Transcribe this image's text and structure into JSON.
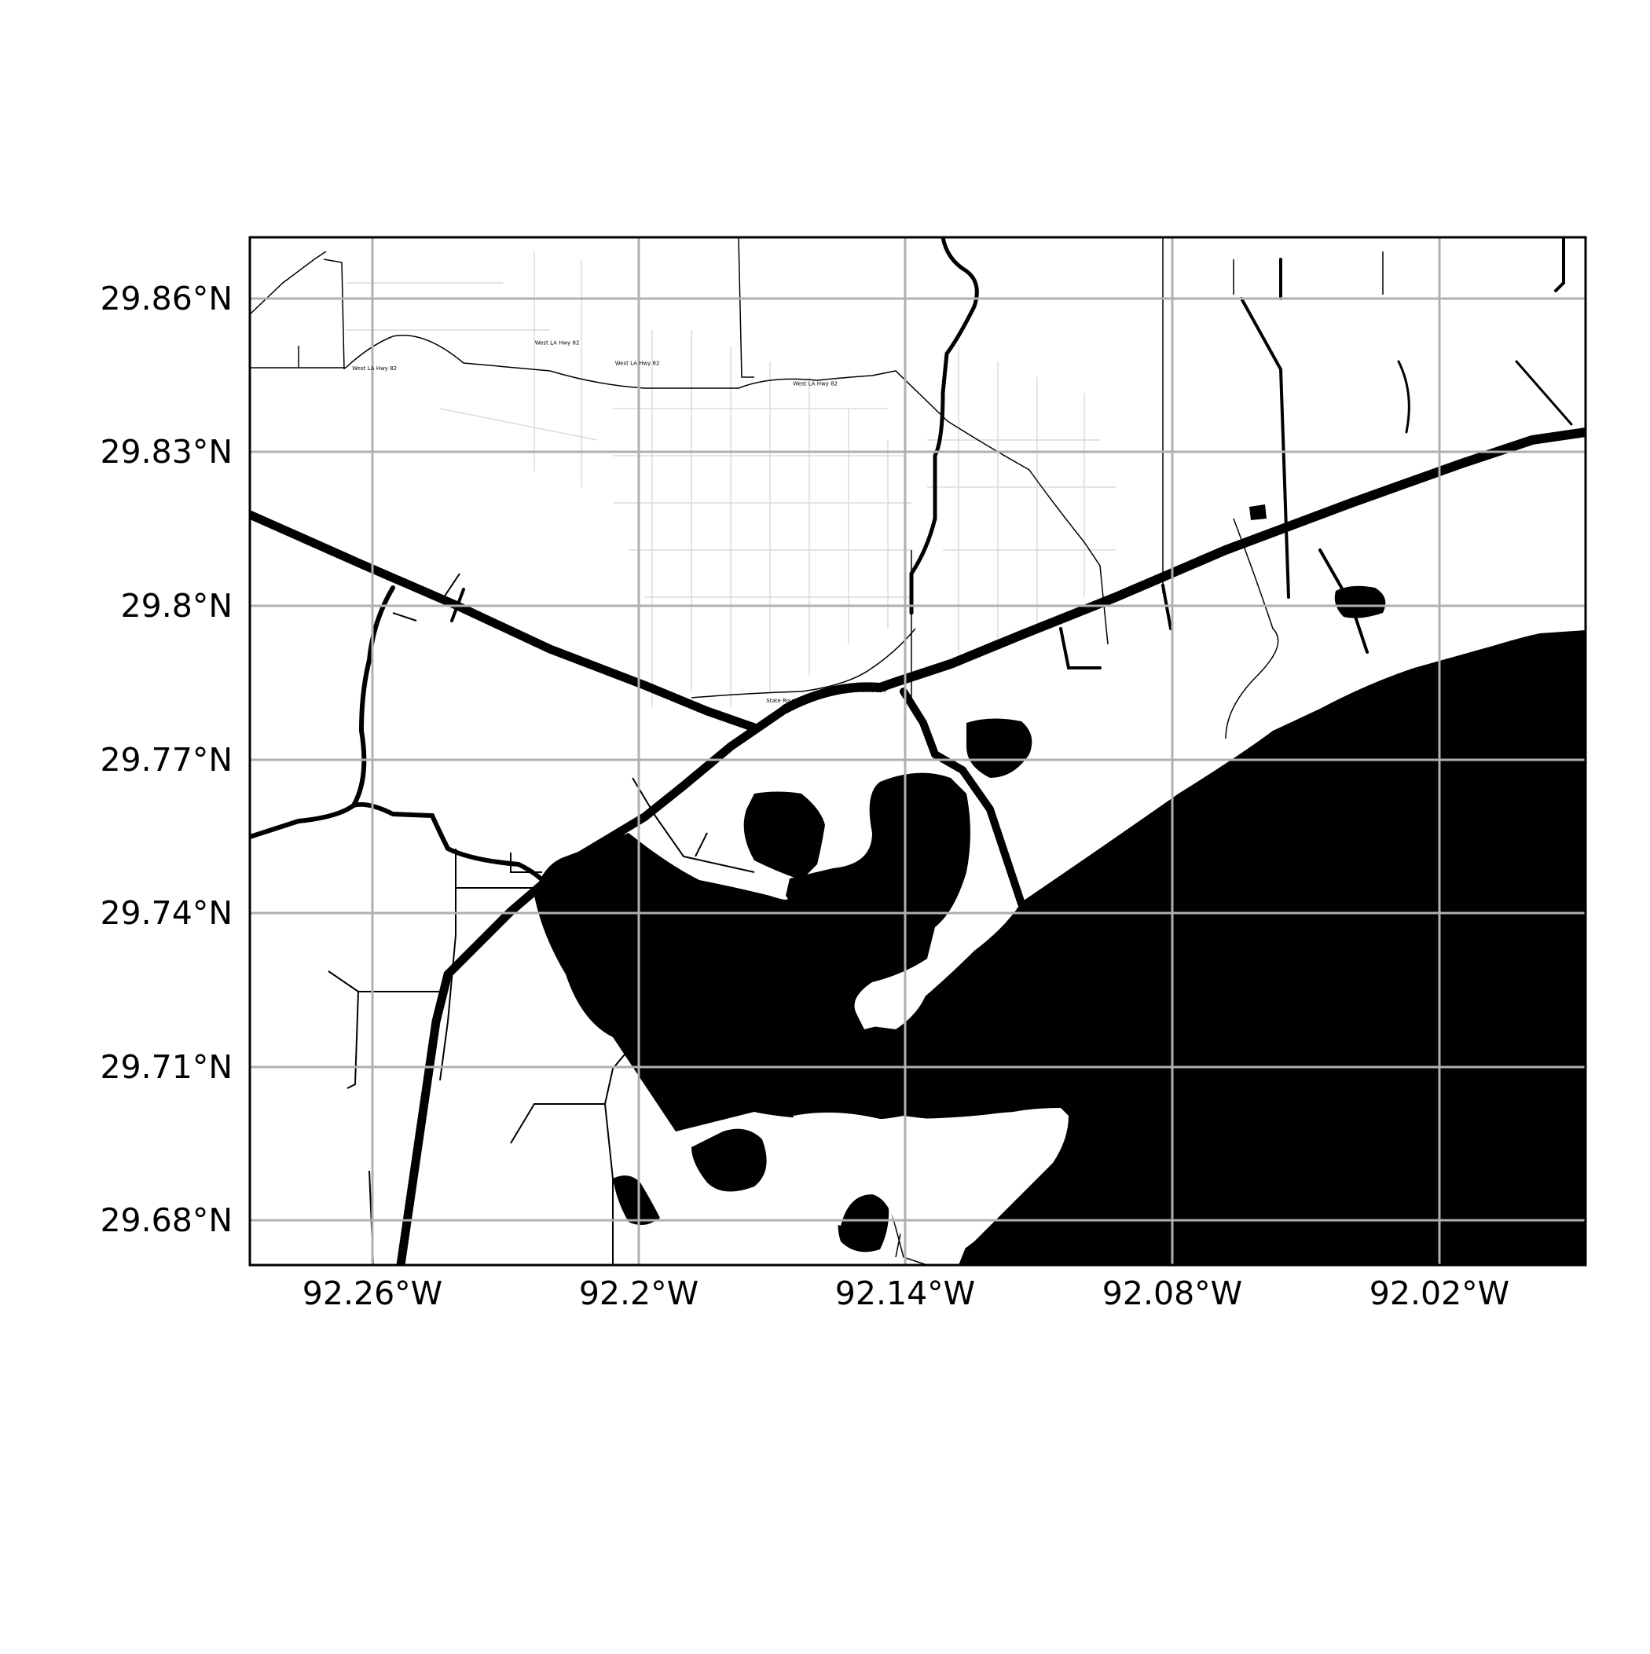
{
  "map": {
    "type": "map",
    "extent": {
      "lon_min": -92.288,
      "lon_max": -91.988,
      "lat_min": 29.671,
      "lat_max": 29.872
    },
    "x_ticks": [
      {
        "label": "92.26°W",
        "lon": -92.26
      },
      {
        "label": "92.2°W",
        "lon": -92.2
      },
      {
        "label": "92.14°W",
        "lon": -92.14
      },
      {
        "label": "92.08°W",
        "lon": -92.08
      },
      {
        "label": "92.02°W",
        "lon": -92.02
      }
    ],
    "y_ticks": [
      {
        "label": "29.86°N",
        "lat": 29.86
      },
      {
        "label": "29.83°N",
        "lat": 29.83
      },
      {
        "label": "29.8°N",
        "lat": 29.8
      },
      {
        "label": "29.77°N",
        "lat": 29.77
      },
      {
        "label": "29.74°N",
        "lat": 29.74
      },
      {
        "label": "29.71°N",
        "lat": 29.71
      },
      {
        "label": "29.68°N",
        "lat": 29.68
      }
    ],
    "grid": true,
    "colors": {
      "water": "#000000",
      "land": "#ffffff",
      "grid": "#b0b0b0",
      "roads": "#000000"
    },
    "road_labels": [
      {
        "text": "West LA Hwy 82",
        "lon": -92.265,
        "lat": 29.846
      },
      {
        "text": "West LA Hwy 82",
        "lon": -92.224,
        "lat": 29.851
      },
      {
        "text": "West LA Hwy 82",
        "lon": -92.206,
        "lat": 29.847
      },
      {
        "text": "West LA Hwy 82",
        "lon": -92.166,
        "lat": 29.843
      },
      {
        "text": "State Route 330",
        "lon": -92.172,
        "lat": 29.781
      },
      {
        "text": "State Route 330",
        "lon": -92.155,
        "lat": 29.783
      }
    ]
  }
}
